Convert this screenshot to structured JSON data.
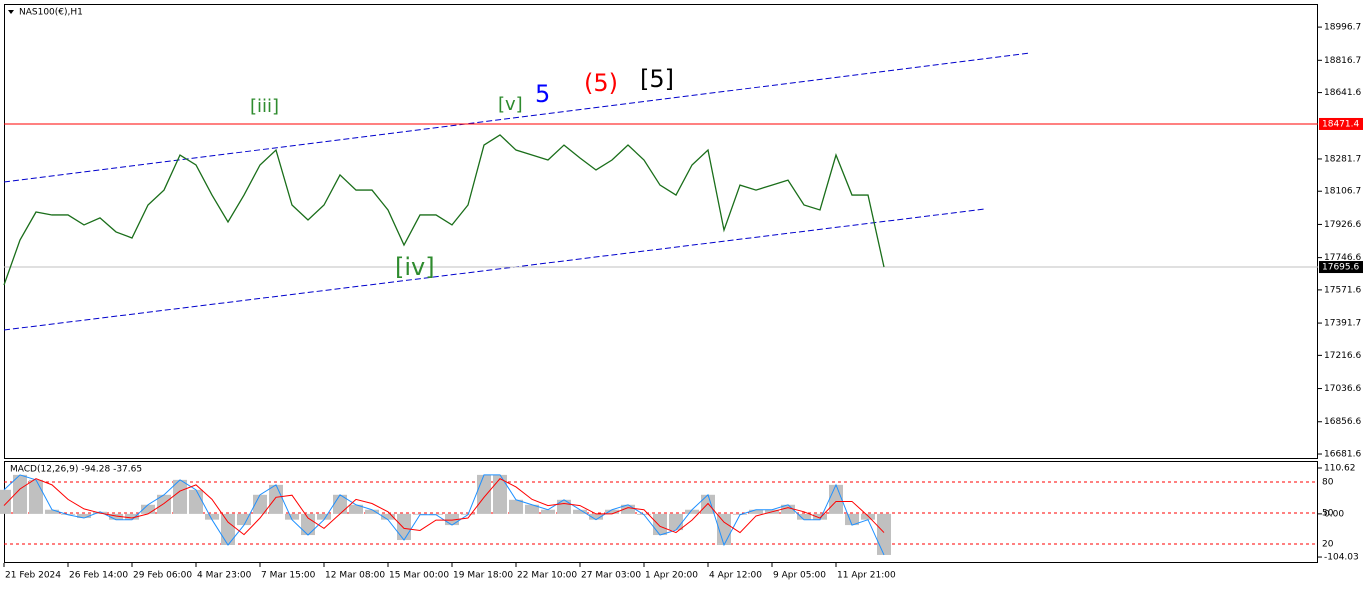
{
  "chart_data": [
    {
      "type": "line",
      "title": "NAS100(€),H1",
      "color": "#1a6e1a",
      "categories": [
        "21 Feb 2024",
        null,
        null,
        null,
        "26 Feb 14:00",
        null,
        null,
        null,
        "29 Feb 06:00",
        null,
        null,
        null,
        "4 Mar 23:00",
        null,
        null,
        null,
        "7 Mar 15:00",
        null,
        null,
        null,
        "12 Mar 08:00",
        null,
        null,
        null,
        "15 Mar 00:00",
        null,
        null,
        null,
        "19 Mar 18:00",
        null,
        null,
        null,
        "22 Mar 10:00",
        null,
        null,
        null,
        "27 Mar 03:00",
        null,
        null,
        null,
        "1 Apr 20:00",
        null,
        null,
        null,
        "4 Apr 12:00",
        null,
        null,
        null,
        "9 Apr 05:00",
        null,
        null,
        null,
        "11 Apr 21:00",
        null,
        null,
        null
      ],
      "values": [
        17598,
        17842,
        17994,
        17978,
        17978,
        17924,
        17962,
        17886,
        17853,
        18032,
        18113,
        18303,
        18249,
        18086,
        17940,
        18086,
        18249,
        18330,
        18032,
        17951,
        18032,
        18195,
        18113,
        18113,
        18005,
        17815,
        17978,
        17978,
        17924,
        18032,
        18357,
        18412,
        18330,
        18303,
        18276,
        18357,
        18287,
        18222,
        18276,
        18357,
        18276,
        18140,
        18086,
        18249,
        18330,
        17896,
        18140,
        18113,
        18140,
        18167,
        18032,
        18005,
        18303,
        18086,
        18086,
        17695.6
      ],
      "ylim": [
        16660,
        19122
      ],
      "yticks": [
        18996.7,
        18816.7,
        18641.6,
        18281.7,
        18106.7,
        17926.6,
        17746.6,
        17571.6,
        17391.7,
        17216.6,
        17036.6,
        16856.6,
        16681.6
      ],
      "price_lines": [
        {
          "value": 18471.4,
          "color": "#ff0000"
        },
        {
          "value": 17695.6,
          "color": "#000000"
        }
      ],
      "annotations": [
        {
          "text": "[iii]",
          "color": "#2e8b2e"
        },
        {
          "text": "[v]",
          "color": "#2e8b2e"
        },
        {
          "text": "5",
          "color": "#0000ff"
        },
        {
          "text": "(5)",
          "color": "#ff0000"
        },
        {
          "text": "[5]",
          "color": "#000000"
        },
        {
          "text": "[iv]",
          "color": "#2e8b2e"
        }
      ]
    },
    {
      "type": "macd",
      "title": "MACD(12,26,9) -94.28 -37.65",
      "series": [
        {
          "color": "#1e90ff",
          "values": [
            58,
            94,
            82,
            10,
            -2,
            -10,
            5,
            -14,
            -14,
            22,
            46,
            82,
            58,
            -14,
            -75,
            -27,
            46,
            70,
            -14,
            -51,
            -14,
            46,
            22,
            10,
            -14,
            -63,
            -2,
            -2,
            -27,
            -2,
            94,
            94,
            34,
            22,
            10,
            34,
            10,
            -14,
            10,
            22,
            -2,
            -51,
            -39,
            10,
            46,
            -75,
            -2,
            10,
            10,
            22,
            -14,
            -14,
            70,
            -27,
            -14,
            -99
          ]
        },
        {
          "color": "#ff0000",
          "values": [
            20,
            60,
            85,
            70,
            35,
            12,
            2,
            -5,
            -10,
            0,
            25,
            55,
            70,
            35,
            -20,
            -50,
            -10,
            40,
            45,
            -10,
            -35,
            0,
            35,
            25,
            5,
            -35,
            -40,
            -15,
            -15,
            -10,
            40,
            85,
            65,
            35,
            20,
            25,
            20,
            0,
            0,
            15,
            10,
            -30,
            -45,
            -15,
            25,
            -20,
            -45,
            -5,
            5,
            15,
            5,
            -10,
            30,
            30,
            -5,
            -45
          ]
        }
      ],
      "ylim": [
        -116,
        127.5
      ],
      "yticks": [
        110.62,
        {
          "value": 0,
          "label": "0.00"
        },
        -104.03
      ],
      "levels": [
        80,
        50,
        20
      ],
      "level_ylim": [
        2.6,
        100.3
      ],
      "level_color": "#ff0000"
    }
  ]
}
